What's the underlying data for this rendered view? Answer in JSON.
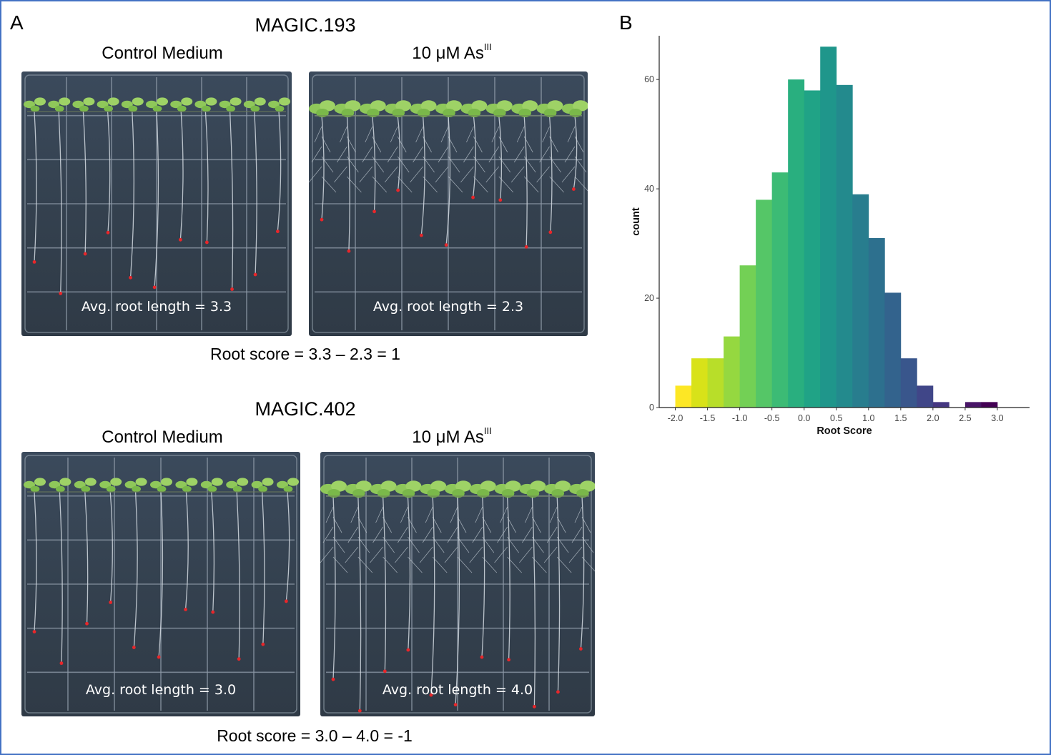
{
  "panel_a": {
    "letter": "A",
    "rows": [
      {
        "title": "MAGIC.193",
        "control_label": "Control Medium",
        "treatment_label_main": "10 μM As",
        "treatment_label_sup": "III",
        "control_avg": "Avg. root length = 3.3",
        "treatment_avg": "Avg. root length = 2.3",
        "root_score": "Root score = 3.3 – 2.3 = 1"
      },
      {
        "title": "MAGIC.402",
        "control_label": "Control Medium",
        "treatment_label_main": "10 μM As",
        "treatment_label_sup": "III",
        "control_avg": "Avg. root length = 3.0",
        "treatment_avg": "Avg. root length = 4.0",
        "root_score": "Root score = 3.0 – 4.0 = -1"
      }
    ]
  },
  "panel_b": {
    "letter": "B"
  },
  "chart_data": {
    "type": "bar",
    "title": "",
    "xlabel": "Root Score",
    "ylabel": "count",
    "xlim": [
      -2.25,
      3.5
    ],
    "ylim": [
      0,
      68
    ],
    "x_ticks": [
      -2.0,
      -1.5,
      -1.0,
      -0.5,
      0.0,
      0.5,
      1.0,
      1.5,
      2.0,
      2.5,
      3.0
    ],
    "x_tick_labels": [
      "-2.0",
      "-1.5",
      "-1.0",
      "-0.5",
      "0.0",
      "0.5",
      "1.0",
      "1.5",
      "2.0",
      "2.5",
      "3.0"
    ],
    "y_ticks": [
      0,
      20,
      40,
      60
    ],
    "y_tick_labels": [
      "0",
      "20",
      "40",
      "60"
    ],
    "bin_width": 0.25,
    "bin_centers": [
      -1.875,
      -1.625,
      -1.375,
      -1.125,
      -0.875,
      -0.625,
      -0.375,
      -0.125,
      0.125,
      0.375,
      0.625,
      0.875,
      1.125,
      1.375,
      1.625,
      1.875,
      2.125,
      2.375,
      2.625,
      2.875,
      3.125,
      3.375
    ],
    "values": [
      4,
      9,
      9,
      13,
      26,
      38,
      43,
      60,
      58,
      66,
      59,
      39,
      31,
      21,
      9,
      4,
      1,
      0,
      1,
      1,
      0,
      0
    ],
    "fill_colors": [
      "#fde725",
      "#d8e219",
      "#b8de29",
      "#95d840",
      "#73d055",
      "#55c667",
      "#3cbb75",
      "#29af7f",
      "#20a386",
      "#1f968b",
      "#238a8d",
      "#287d8e",
      "#2d708e",
      "#33638d",
      "#39568c",
      "#404688",
      "#453781",
      "#482677",
      "#481567",
      "#440154",
      "#440154",
      "#440154"
    ],
    "grid": false,
    "legend": "none"
  }
}
